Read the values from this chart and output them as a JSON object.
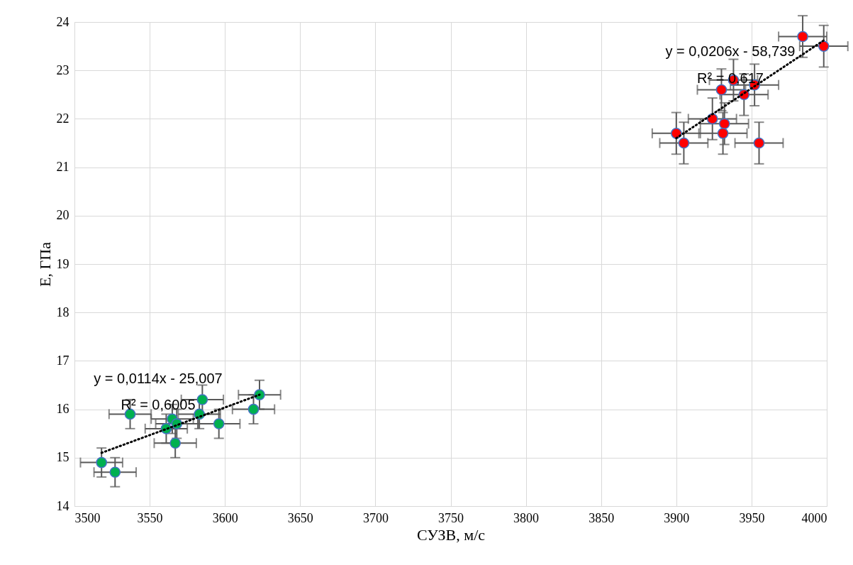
{
  "chart_data": {
    "type": "scatter",
    "xlabel": "СУЗВ, м/с",
    "ylabel": "E, ГПа",
    "xlim": [
      3500,
      4000
    ],
    "ylim": [
      14,
      24
    ],
    "xticks": [
      3500,
      3550,
      3600,
      3650,
      3700,
      3750,
      3800,
      3850,
      3900,
      3950,
      4000
    ],
    "yticks": [
      14,
      15,
      16,
      17,
      18,
      19,
      20,
      21,
      22,
      23,
      24
    ],
    "grid": true,
    "marker": "circle",
    "series": [
      {
        "color": "#ff0000",
        "x": [
          3900,
          3905,
          3924,
          3930,
          3932,
          3931,
          3938,
          3945,
          3952,
          3955,
          3984,
          3998
        ],
        "values": [
          21.7,
          21.5,
          22.0,
          22.6,
          21.9,
          21.7,
          22.8,
          22.5,
          22.7,
          21.5,
          23.7,
          23.5
        ],
        "errors": [
          0.43,
          0.43,
          0.43,
          0.43,
          0.43,
          0.43,
          0.43,
          0.43,
          0.43,
          0.43,
          0.43,
          0.43
        ],
        "xerrors": [
          16,
          16,
          16,
          16,
          16,
          16,
          16,
          16,
          16,
          16,
          16,
          16
        ]
      },
      {
        "color": "#00b050",
        "x": [
          3518,
          3527,
          3537,
          3561,
          3565,
          3567,
          3568,
          3583,
          3585,
          3596,
          3619,
          3623
        ],
        "values": [
          14.9,
          14.7,
          15.9,
          15.6,
          15.8,
          15.3,
          15.7,
          15.9,
          16.2,
          15.7,
          16.0,
          16.3
        ],
        "errors": [
          0.3,
          0.3,
          0.3,
          0.3,
          0.3,
          0.3,
          0.3,
          0.3,
          0.3,
          0.3,
          0.3,
          0.3
        ],
        "xerrors": [
          14,
          14,
          14,
          14,
          14,
          14,
          14,
          14,
          14,
          14,
          14,
          14
        ]
      },
      {
        "type": "line",
        "color": "#000000",
        "line_style": "dotted",
        "marker": "none",
        "x": [
          3900,
          3998
        ],
        "values": [
          21.6,
          23.62
        ]
      },
      {
        "type": "line",
        "color": "#000000",
        "line_style": "dotted",
        "marker": "none",
        "x": [
          3518,
          3623
        ],
        "values": [
          15.1,
          16.3
        ]
      }
    ],
    "annotations": [
      "y = 0,0206x - 58,739",
      "R² = 0,617",
      "y = 0,0114x - 25,007",
      "R² = 0,6005"
    ]
  }
}
